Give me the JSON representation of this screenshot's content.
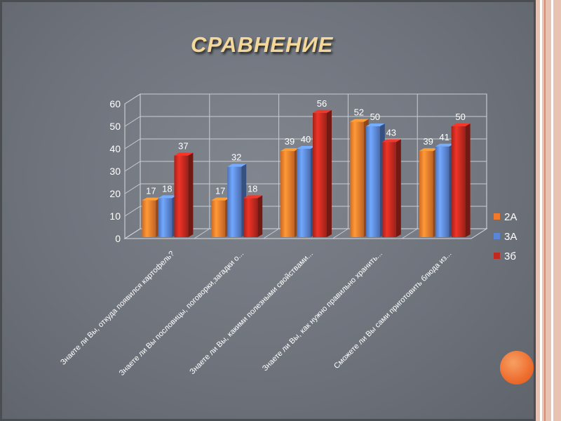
{
  "title": "СРАВНЕНИЕ",
  "colors": {
    "2A": "#f07a2c",
    "3A": "#5b86d8",
    "3b": "#c0291f",
    "text": "#ffffff",
    "accent_circle": "#ee6e2f"
  },
  "chart_data": {
    "type": "bar",
    "categories": [
      "Знаете ли Вы, откуда появился картофель?",
      "Знаете ли Вы пословицы, поговорки,загадки о...",
      "Знаете ли Вы, какими полезными свойствами...",
      "Знаете ли Вы, как нужно правильно хранить...",
      "Сможете ли Вы сами приготовить блюда из..."
    ],
    "series": [
      {
        "name": "2А",
        "values": [
          17,
          17,
          39,
          52,
          39
        ]
      },
      {
        "name": "3А",
        "values": [
          18,
          32,
          40,
          50,
          41
        ]
      },
      {
        "name": "3б",
        "values": [
          37,
          18,
          56,
          43,
          50
        ]
      }
    ],
    "ylim": [
      0,
      60
    ],
    "yticks": [
      "0",
      "10",
      "20",
      "30",
      "40",
      "50",
      "60"
    ],
    "grid": true,
    "legend_position": "right",
    "three_d": true
  }
}
